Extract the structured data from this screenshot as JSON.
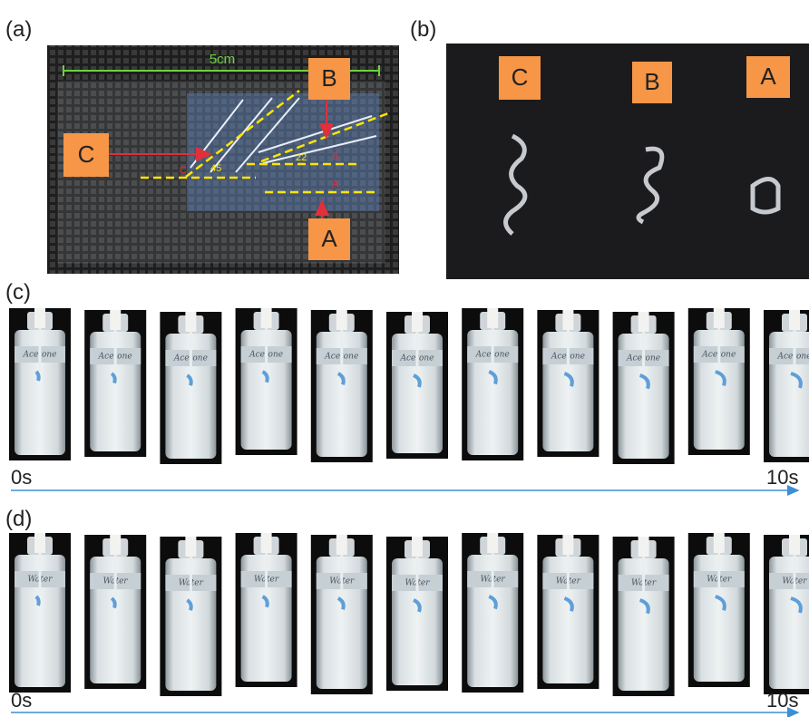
{
  "panels": {
    "a": {
      "label": "(a)",
      "scale": "5cm",
      "callouts": [
        "B",
        "C",
        "A"
      ],
      "angles": [
        "45",
        "22"
      ],
      "line_labels": [
        "C",
        "B",
        "A"
      ]
    },
    "b": {
      "label": "(b)",
      "samples": [
        "C",
        "B",
        "A"
      ]
    },
    "c": {
      "label": "(c)",
      "vials": [
        "Acetone",
        "Acetone",
        "Acetone",
        "Acetone",
        "Acetone",
        "Acetone",
        "Acetone",
        "Acetone",
        "Acetone",
        "Acetone",
        "Acetone"
      ],
      "start": "0s",
      "end": "10s"
    },
    "d": {
      "label": "(d)",
      "vials": [
        "Water",
        "Water",
        "Water",
        "Water",
        "Water",
        "Water",
        "Water",
        "Water",
        "Water",
        "Water",
        "Water"
      ],
      "start": "0s",
      "end": "10s"
    }
  }
}
